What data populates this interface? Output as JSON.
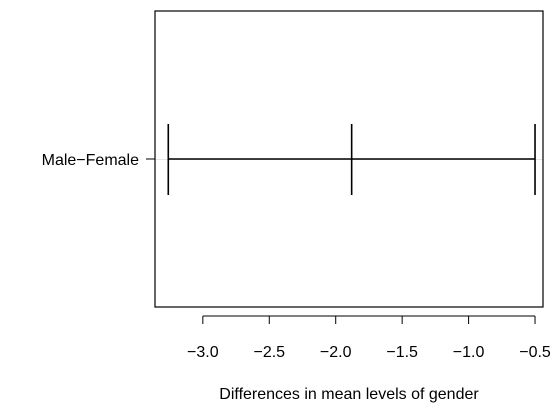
{
  "chart_data": {
    "type": "interval",
    "title": "",
    "xlabel": "Differences in mean levels of gender",
    "ylabel": "",
    "xlim": [
      -3.36,
      -0.44
    ],
    "x_ticks": [
      -3.0,
      -2.5,
      -2.0,
      -1.5,
      -1.0,
      -0.5
    ],
    "x_tick_labels": [
      "−3.0",
      "−2.5",
      "−2.0",
      "−1.5",
      "−1.0",
      "−0.5"
    ],
    "comparisons": [
      {
        "label": "Male−Female",
        "lower": -3.26,
        "estimate": -1.88,
        "upper": -0.5
      }
    ],
    "grid": false,
    "legend": "none"
  }
}
